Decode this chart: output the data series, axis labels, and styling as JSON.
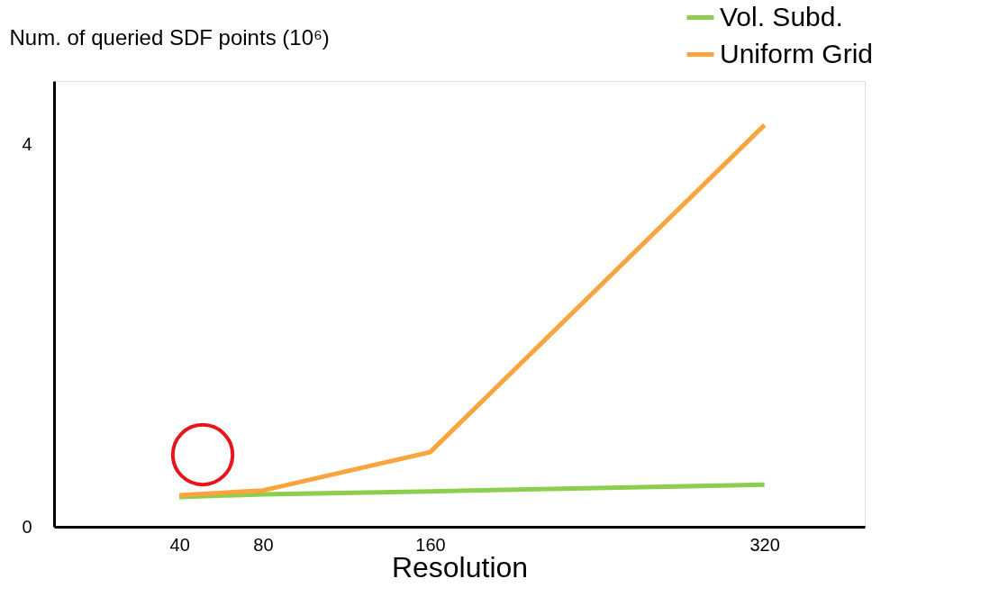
{
  "chart_data": {
    "type": "line",
    "ylabel": "Num. of queried SDF points (10⁶)",
    "xlabel": "Resolution",
    "x": [
      40,
      80,
      160,
      320
    ],
    "series": [
      {
        "name": "Vol. Subd.",
        "color": "#8ccf4d",
        "values": [
          0.31,
          0.34,
          0.37,
          0.44
        ]
      },
      {
        "name": "Uniform Grid",
        "color": "#f9a43c",
        "values": [
          0.33,
          0.38,
          0.78,
          4.2
        ]
      }
    ],
    "xlim": [
      -20,
      368
    ],
    "xticks": [
      40,
      80,
      160,
      320
    ],
    "ylim": [
      0,
      4.66
    ],
    "yticks": [
      0,
      4
    ],
    "grid": false,
    "legend": "top right",
    "marker": "none",
    "line_style": "solid"
  }
}
